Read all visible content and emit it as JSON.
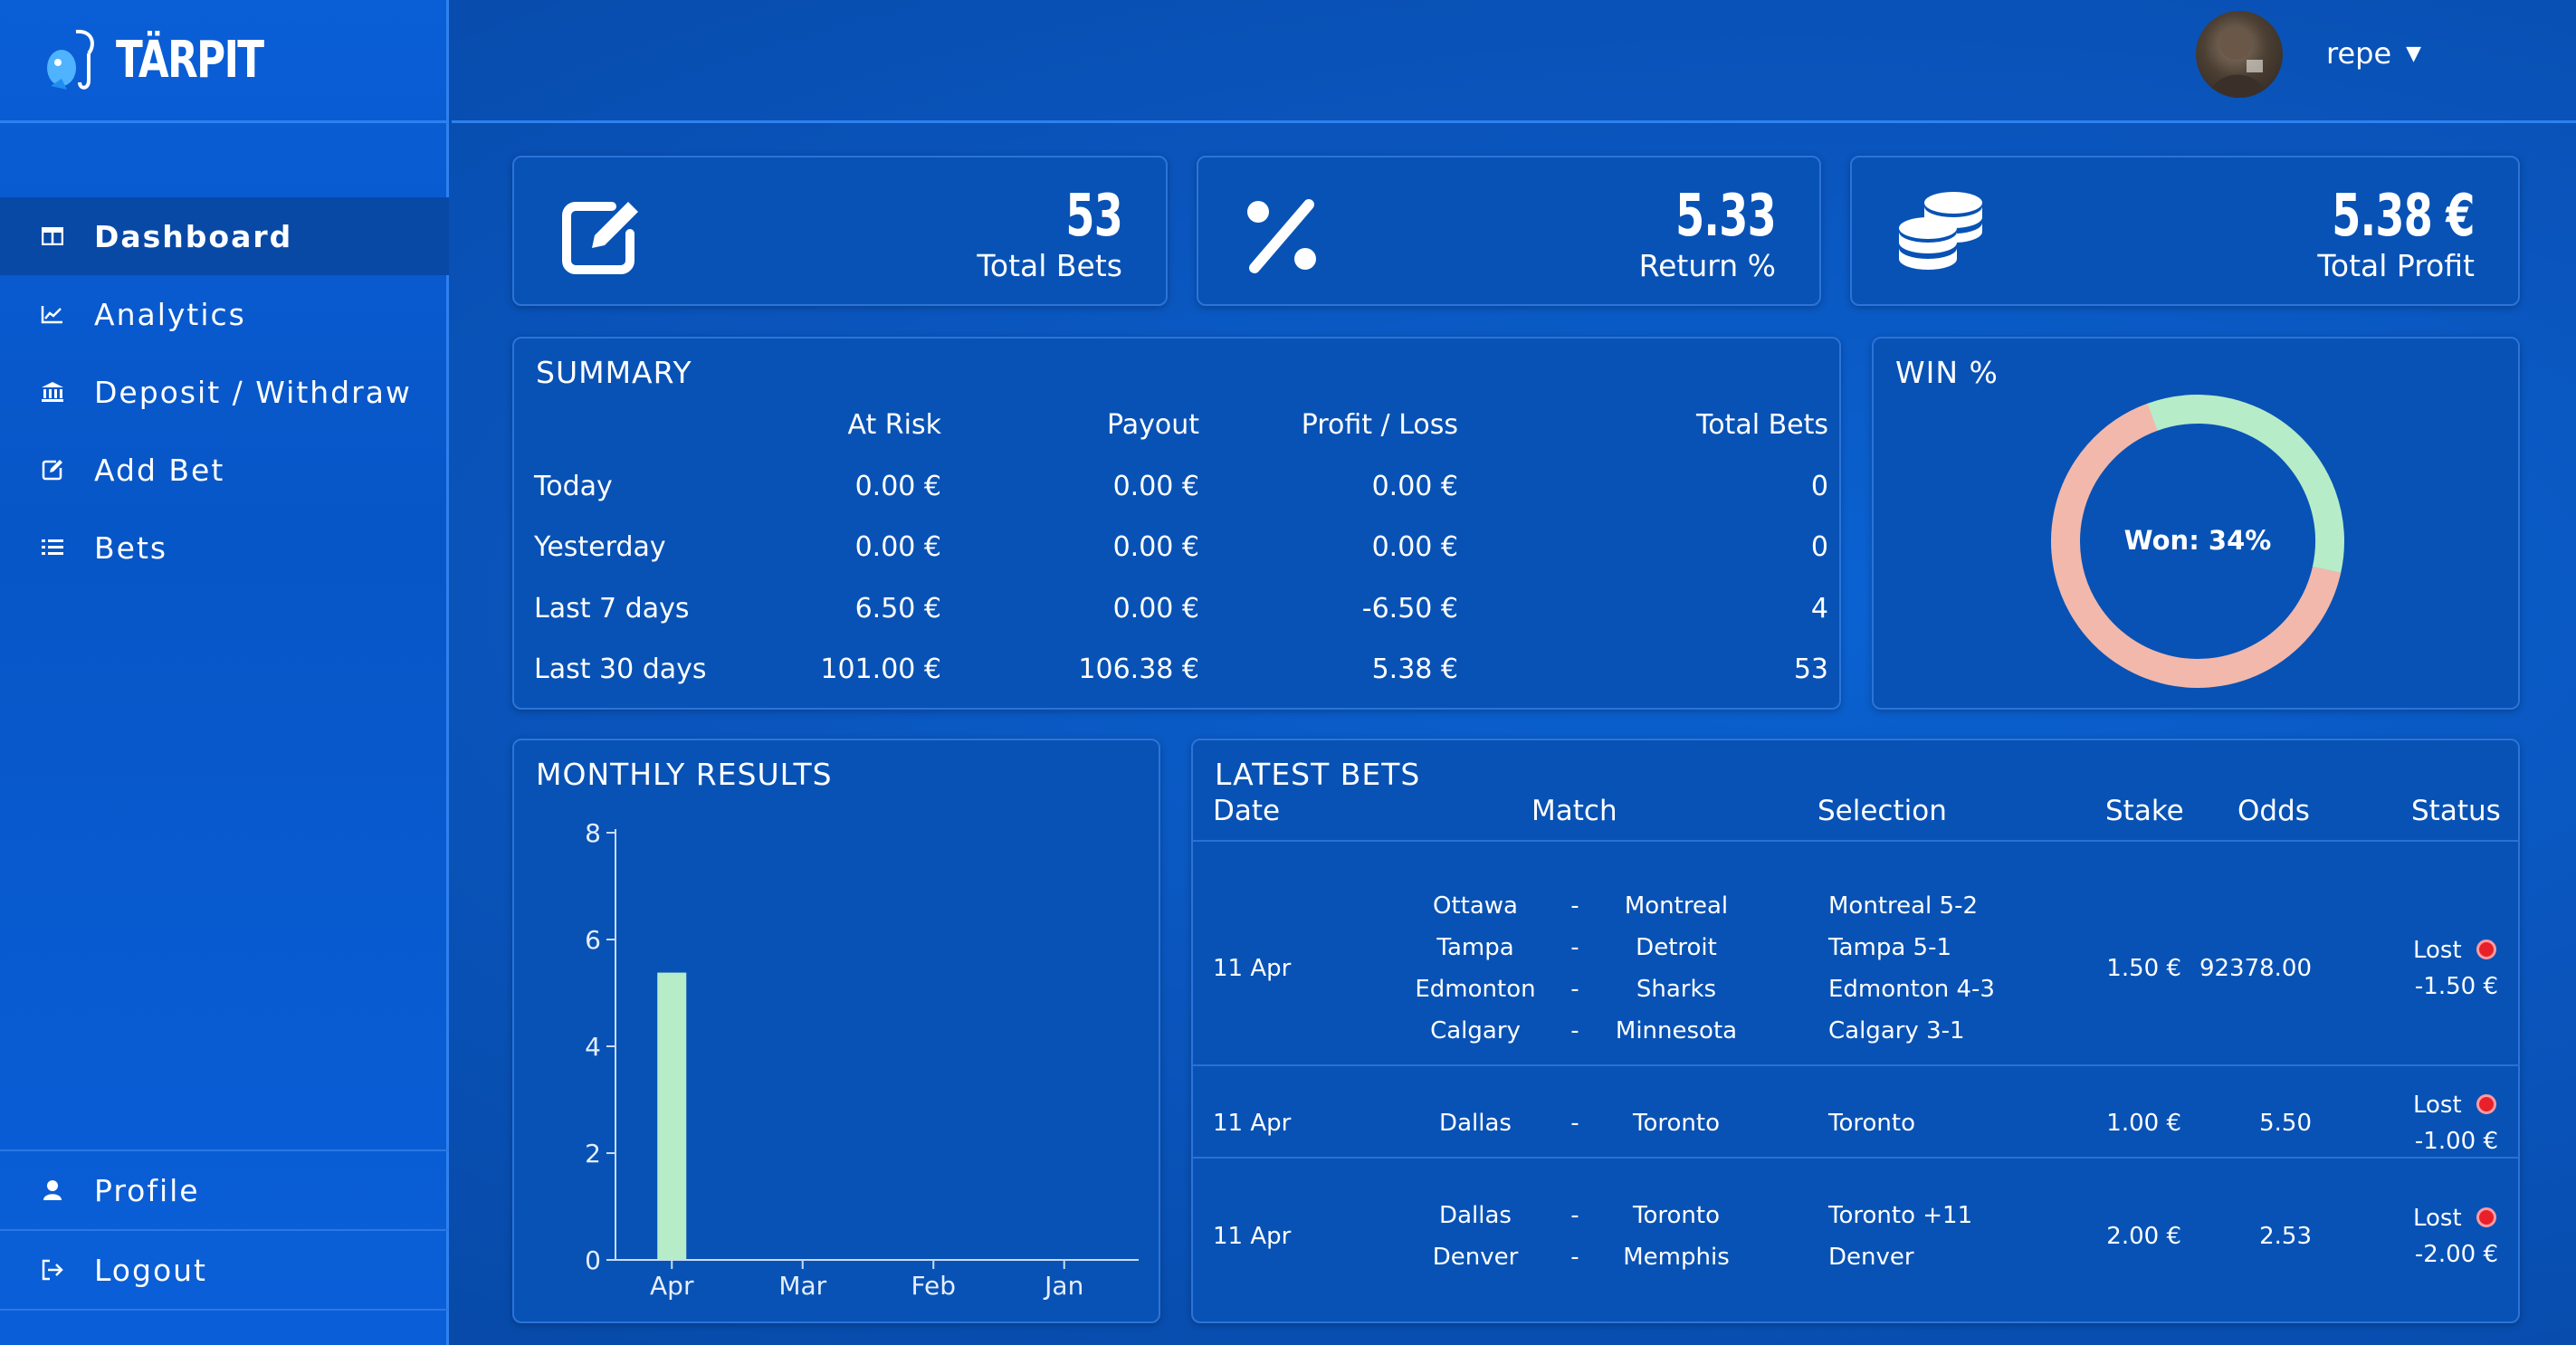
{
  "app": {
    "name": "TÄRPIT"
  },
  "header": {
    "username": "repe"
  },
  "sidebar": {
    "items": [
      {
        "label": "Dashboard",
        "icon": "columns-icon",
        "active": true
      },
      {
        "label": "Analytics",
        "icon": "line-chart-icon"
      },
      {
        "label": "Deposit / Withdraw",
        "icon": "bank-icon"
      },
      {
        "label": "Add Bet",
        "icon": "edit-icon"
      },
      {
        "label": "Bets",
        "icon": "list-icon"
      }
    ],
    "bottom": [
      {
        "label": "Profile",
        "icon": "user-icon"
      },
      {
        "label": "Logout",
        "icon": "logout-icon"
      }
    ]
  },
  "stats": [
    {
      "value": "53",
      "label": "Total Bets",
      "icon": "edit-icon"
    },
    {
      "value": "5.33",
      "label": "Return %",
      "icon": "percent-icon"
    },
    {
      "value": "5.38 €",
      "label": "Total Profit",
      "icon": "coins-icon"
    }
  ],
  "summary": {
    "title": "SUMMARY",
    "columns": [
      "",
      "At Risk",
      "Payout",
      "Profit / Loss",
      "Total Bets"
    ],
    "rows": [
      [
        "Today",
        "0.00 €",
        "0.00 €",
        "0.00 €",
        "0"
      ],
      [
        "Yesterday",
        "0.00 €",
        "0.00 €",
        "0.00 €",
        "0"
      ],
      [
        "Last 7 days",
        "6.50 €",
        "0.00 €",
        "-6.50 €",
        "4"
      ],
      [
        "Last 30 days",
        "101.00 €",
        "106.38 €",
        "5.38 €",
        "53"
      ]
    ]
  },
  "win": {
    "title": "WIN %",
    "center_label": "Won: 34%",
    "won_fraction": 0.34,
    "colors": {
      "won": "#b6ecc8",
      "lost": "#f2b8ac"
    }
  },
  "monthly": {
    "title": "MONTHLY RESULTS",
    "chart_data": {
      "type": "bar",
      "categories": [
        "Apr",
        "Mar",
        "Feb",
        "Jan"
      ],
      "values": [
        5.38,
        0,
        0,
        0
      ],
      "ylim": [
        0,
        8
      ],
      "yticks": [
        "0",
        "2",
        "4",
        "6",
        "8"
      ],
      "bar_color": "#b6ecc8"
    }
  },
  "latest": {
    "title": "LATEST BETS",
    "columns": [
      "Date",
      "Match",
      "Selection",
      "Stake",
      "Odds",
      "Status"
    ],
    "bets": [
      {
        "date": "11 Apr",
        "matches": [
          [
            "Ottawa",
            "-",
            "Montreal"
          ],
          [
            "Tampa",
            "-",
            "Detroit"
          ],
          [
            "Edmonton",
            "-",
            "Sharks"
          ],
          [
            "Calgary",
            "-",
            "Minnesota"
          ]
        ],
        "selections": [
          "Montreal 5-2",
          "Tampa 5-1",
          "Edmonton 4-3",
          "Calgary 3-1"
        ],
        "stake": "1.50 €",
        "odds": "92378.00",
        "status": "Lost",
        "result": "-1.50 €"
      },
      {
        "date": "11 Apr",
        "matches": [
          [
            "Dallas",
            "-",
            "Toronto"
          ]
        ],
        "selections": [
          "Toronto"
        ],
        "stake": "1.00 €",
        "odds": "5.50",
        "status": "Lost",
        "result": "-1.00 €"
      },
      {
        "date": "11 Apr",
        "matches": [
          [
            "Dallas",
            "-",
            "Toronto"
          ],
          [
            "Denver",
            "-",
            "Memphis"
          ]
        ],
        "selections": [
          "Toronto +11",
          "Denver"
        ],
        "stake": "2.00 €",
        "odds": "2.53",
        "status": "Lost",
        "result": "-2.00 €"
      }
    ]
  }
}
